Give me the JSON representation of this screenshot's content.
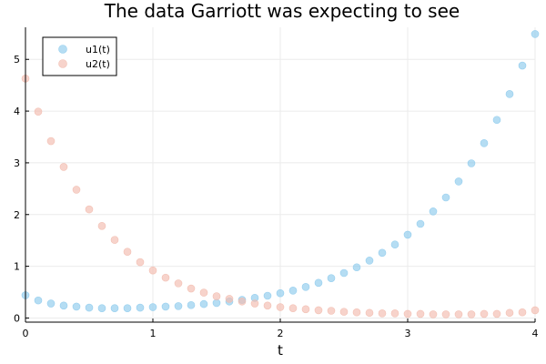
{
  "chart_data": {
    "type": "scatter",
    "title": "The data Garriott was expecting to see",
    "xlabel": "t",
    "ylabel": "",
    "xlim": [
      0,
      4
    ],
    "ylim": [
      -0.08,
      5.62
    ],
    "xticks": [
      0,
      1,
      2,
      3,
      4
    ],
    "yticks": [
      0,
      1,
      2,
      3,
      4,
      5
    ],
    "grid": true,
    "legend_position": "top-left",
    "x": [
      0,
      0.1,
      0.2,
      0.3,
      0.4,
      0.5,
      0.6,
      0.7,
      0.8,
      0.9,
      1.0,
      1.1,
      1.2,
      1.3,
      1.4,
      1.5,
      1.6,
      1.7,
      1.8,
      1.9,
      2.0,
      2.1,
      2.2,
      2.3,
      2.4,
      2.5,
      2.6,
      2.7,
      2.8,
      2.9,
      3.0,
      3.1,
      3.2,
      3.3,
      3.4,
      3.5,
      3.6,
      3.7,
      3.8,
      3.9,
      4.0
    ],
    "series": [
      {
        "name": "u1(t)",
        "color": "#8ecbed",
        "values": [
          0.44,
          0.34,
          0.28,
          0.24,
          0.22,
          0.2,
          0.19,
          0.19,
          0.19,
          0.2,
          0.21,
          0.22,
          0.23,
          0.25,
          0.27,
          0.29,
          0.32,
          0.35,
          0.39,
          0.43,
          0.48,
          0.53,
          0.6,
          0.68,
          0.77,
          0.87,
          0.98,
          1.11,
          1.26,
          1.42,
          1.61,
          1.82,
          2.06,
          2.33,
          2.64,
          2.99,
          3.38,
          3.83,
          4.33,
          4.88,
          5.49
        ]
      },
      {
        "name": "u2(t)",
        "color": "#f2bcaf",
        "values": [
          4.63,
          3.99,
          3.42,
          2.92,
          2.48,
          2.1,
          1.78,
          1.51,
          1.28,
          1.08,
          0.92,
          0.78,
          0.67,
          0.57,
          0.49,
          0.42,
          0.37,
          0.32,
          0.28,
          0.24,
          0.21,
          0.19,
          0.17,
          0.15,
          0.14,
          0.12,
          0.11,
          0.1,
          0.09,
          0.09,
          0.08,
          0.08,
          0.07,
          0.07,
          0.07,
          0.07,
          0.08,
          0.08,
          0.1,
          0.11,
          0.15
        ]
      }
    ]
  }
}
